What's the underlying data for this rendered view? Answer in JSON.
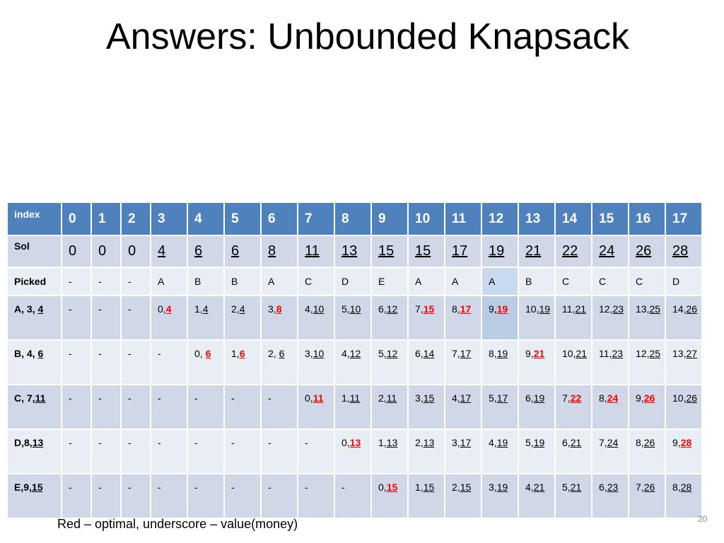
{
  "title": "Answers: Unbounded Knapsack",
  "footer": "Red – optimal, underscore – value(money)",
  "page_number": "20",
  "header": {
    "label": "index",
    "cells": [
      "0",
      "1",
      "2",
      "3",
      "4",
      "5",
      "6",
      "7",
      "8",
      "9",
      "10",
      "11",
      "12",
      "13",
      "14",
      "15",
      "16",
      "17"
    ]
  },
  "sol": {
    "label": "Sol",
    "cells": [
      "0",
      "0",
      "0",
      "4",
      "6",
      "6",
      "8",
      "11",
      "13",
      "15",
      "15",
      "17",
      "19",
      "21",
      "22",
      "24",
      "26",
      "28"
    ]
  },
  "picked": {
    "label": "Picked",
    "cells": [
      "-",
      "-",
      "-",
      "A",
      "B",
      "B",
      "A",
      "C",
      "D",
      "E",
      "A",
      "A",
      "A",
      "B",
      "C",
      "C",
      "C",
      "D"
    ]
  },
  "items": [
    {
      "label_prefix": "A, 3, ",
      "label_value": "4",
      "cells": [
        {
          "t": "-"
        },
        {
          "t": "-"
        },
        {
          "t": "-"
        },
        {
          "a": "0,",
          "b": "4",
          "opt": true
        },
        {
          "a": "1,",
          "b": "4"
        },
        {
          "a": "2,",
          "b": "4"
        },
        {
          "a": "3,",
          "b": "8",
          "opt": true
        },
        {
          "a": "4,",
          "b": "10"
        },
        {
          "a": "5,",
          "b": "10"
        },
        {
          "a": "6,",
          "b": "12"
        },
        {
          "a": "7,",
          "b": "15",
          "opt": true
        },
        {
          "a": "8,",
          "b": "17",
          "opt": true
        },
        {
          "a": "9,",
          "b": "19",
          "opt": true
        },
        {
          "a": "10,",
          "b": "19"
        },
        {
          "a": "11,",
          "b": "21"
        },
        {
          "a": "12,",
          "b": "23"
        },
        {
          "a": "13,",
          "b": "25"
        },
        {
          "a": "14,",
          "b": "26"
        }
      ]
    },
    {
      "label_prefix": "B, 4, ",
      "label_value": "6",
      "cells": [
        {
          "t": "-"
        },
        {
          "t": "-"
        },
        {
          "t": "-"
        },
        {
          "t": "-"
        },
        {
          "a": "0, ",
          "b": "6",
          "opt": true
        },
        {
          "a": "1,",
          "b": "6",
          "opt": true
        },
        {
          "a": "2, ",
          "b": "6"
        },
        {
          "a": "3,",
          "b": "10"
        },
        {
          "a": "4,",
          "b": "12"
        },
        {
          "a": "5,",
          "b": "12"
        },
        {
          "a": "6,",
          "b": "14"
        },
        {
          "a": "7,",
          "b": "17"
        },
        {
          "a": "8,",
          "b": "19"
        },
        {
          "a": "9,",
          "b": "21",
          "opt": true
        },
        {
          "a": "10,",
          "b": "21"
        },
        {
          "a": "11,",
          "b": "23"
        },
        {
          "a": "12,",
          "b": "25"
        },
        {
          "a": "13,",
          "b": "27"
        }
      ]
    },
    {
      "label_prefix": "C, 7,",
      "label_value": "11",
      "cells": [
        {
          "t": "-"
        },
        {
          "t": "-"
        },
        {
          "t": "-"
        },
        {
          "t": "-"
        },
        {
          "t": "-"
        },
        {
          "t": "-"
        },
        {
          "t": "-"
        },
        {
          "a": "0,",
          "b": "11",
          "opt": true
        },
        {
          "a": "1,",
          "b": "11"
        },
        {
          "a": "2,",
          "b": "11"
        },
        {
          "a": "3,",
          "b": "15"
        },
        {
          "a": "4,",
          "b": "17"
        },
        {
          "a": "5,",
          "b": "17"
        },
        {
          "a": "6,",
          "b": "19"
        },
        {
          "a": "7,",
          "b": "22",
          "opt": true
        },
        {
          "a": "8,",
          "b": "24",
          "opt": true
        },
        {
          "a": "9,",
          "b": "26",
          "opt": true
        },
        {
          "a": "10,",
          "b": "26"
        }
      ]
    },
    {
      "label_prefix": "D,8,",
      "label_value": "13",
      "cells": [
        {
          "t": "-"
        },
        {
          "t": "-"
        },
        {
          "t": "-"
        },
        {
          "t": "-"
        },
        {
          "t": "-"
        },
        {
          "t": "-"
        },
        {
          "t": "-"
        },
        {
          "t": "-"
        },
        {
          "a": "0,",
          "b": "13",
          "opt": true
        },
        {
          "a": "1,",
          "b": "13"
        },
        {
          "a": "2,",
          "b": "13"
        },
        {
          "a": "3,",
          "b": "17"
        },
        {
          "a": "4,",
          "b": "19"
        },
        {
          "a": "5,",
          "b": "19"
        },
        {
          "a": "6,",
          "b": "21"
        },
        {
          "a": "7,",
          "b": "24"
        },
        {
          "a": "8,",
          "b": "26"
        },
        {
          "a": "9,",
          "b": "28",
          "opt": true
        }
      ]
    },
    {
      "label_prefix": "E,9,",
      "label_value": "15",
      "cells": [
        {
          "t": "-"
        },
        {
          "t": "-"
        },
        {
          "t": "-"
        },
        {
          "t": "-"
        },
        {
          "t": "-"
        },
        {
          "t": "-"
        },
        {
          "t": "-"
        },
        {
          "t": "-"
        },
        {
          "t": "-"
        },
        {
          "a": "0,",
          "b": "15",
          "opt": true
        },
        {
          "a": "1,",
          "b": "15"
        },
        {
          "a": "2,",
          "b": "15"
        },
        {
          "a": "3,",
          "b": "19"
        },
        {
          "a": "4,",
          "b": "21"
        },
        {
          "a": "5,",
          "b": "21"
        },
        {
          "a": "6,",
          "b": "23"
        },
        {
          "a": "7,",
          "b": "26"
        },
        {
          "a": "8,",
          "b": "28"
        }
      ]
    }
  ],
  "highlight_column": 12,
  "colors": {
    "header_bg": "#4f81bd",
    "row_dark": "#d0d8e8",
    "row_light": "#e9edf4",
    "optimal": "#ff0000"
  }
}
